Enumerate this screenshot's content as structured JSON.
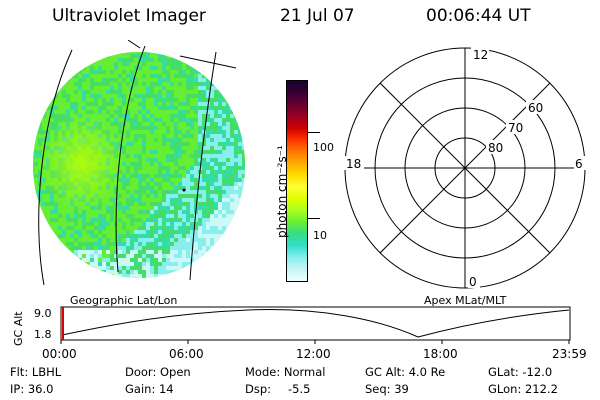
{
  "header": {
    "title": "Ultraviolet Imager",
    "date": "21 Jul 07",
    "time": "00:06:44 UT"
  },
  "colorbar": {
    "label": "photon cm⁻²s⁻¹",
    "ticks": [
      "100",
      "10"
    ],
    "colors": [
      "#1a0033",
      "#330033",
      "#660033",
      "#990022",
      "#cc0000",
      "#ff3300",
      "#ff7700",
      "#ffaa00",
      "#ffdd00",
      "#ffff33",
      "#ddff00",
      "#aaff22",
      "#66ee33",
      "#33dd88",
      "#33ddcc",
      "#88eeee",
      "#c8f5f5",
      "#eeffff"
    ]
  },
  "polar": {
    "mlt_labels": {
      "top": "12",
      "bottom": "0",
      "left": "18",
      "right": "6"
    },
    "lat_labels": [
      "80",
      "70",
      "60"
    ]
  },
  "image_panel": {
    "projection_label": "Geographic Lat/Lon",
    "disk_colors": {
      "base": "#66ee33",
      "alt": "#44dd66",
      "teal": "#33ddaa",
      "cyan": "#88eeee",
      "light": "#ccf8f8",
      "yellow": "#bbff00"
    }
  },
  "polar_panel": {
    "projection_label": "Apex MLat/MLT"
  },
  "altitude_plot": {
    "ylabel": "GC Alt",
    "yticks": [
      "9.0",
      "1.8"
    ],
    "xticks": [
      "00:00",
      "06:00",
      "12:00",
      "18:00",
      "23:59"
    ],
    "marker_color": "#dd0000"
  },
  "info": {
    "flt": "Flt: LBHL",
    "ip": "IP: 36.0",
    "door": "Door: Open",
    "gain": "Gain: 14",
    "mode": "Mode: Normal",
    "dsp_label": "Dsp:",
    "dsp_value": "-5.5",
    "gc_alt": "GC Alt: 4.0 Re",
    "seq": "Seq: 39",
    "glat": "GLat: -12.0",
    "glon": "GLon: 212.2"
  }
}
